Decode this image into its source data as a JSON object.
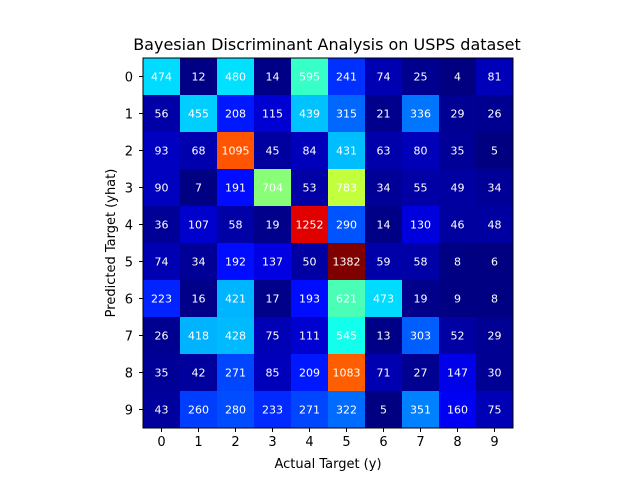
{
  "chart_data": {
    "type": "heatmap",
    "title": "Bayesian Discriminant Analysis on USPS dataset",
    "xlabel": "Actual Target (y)",
    "ylabel": "Predicted Target (yhat)",
    "x_categories": [
      "0",
      "1",
      "2",
      "3",
      "4",
      "5",
      "6",
      "7",
      "8",
      "9"
    ],
    "y_categories": [
      "0",
      "1",
      "2",
      "3",
      "4",
      "5",
      "6",
      "7",
      "8",
      "9"
    ],
    "colormap": "jet",
    "value_range": [
      4,
      1382
    ],
    "grid": false,
    "values": [
      [
        474,
        12,
        480,
        14,
        595,
        241,
        74,
        25,
        4,
        81
      ],
      [
        56,
        455,
        208,
        115,
        439,
        315,
        21,
        336,
        29,
        26
      ],
      [
        93,
        68,
        1095,
        45,
        84,
        431,
        63,
        80,
        35,
        5
      ],
      [
        90,
        7,
        191,
        704,
        53,
        783,
        34,
        55,
        49,
        34
      ],
      [
        36,
        107,
        58,
        19,
        1252,
        290,
        14,
        130,
        46,
        48
      ],
      [
        74,
        34,
        192,
        137,
        50,
        1382,
        59,
        58,
        8,
        6
      ],
      [
        223,
        16,
        421,
        17,
        193,
        621,
        473,
        19,
        9,
        8
      ],
      [
        26,
        418,
        428,
        75,
        111,
        545,
        13,
        303,
        52,
        29
      ],
      [
        35,
        42,
        271,
        85,
        209,
        1083,
        71,
        27,
        147,
        30
      ],
      [
        43,
        260,
        280,
        233,
        271,
        322,
        5,
        351,
        160,
        75
      ]
    ]
  }
}
